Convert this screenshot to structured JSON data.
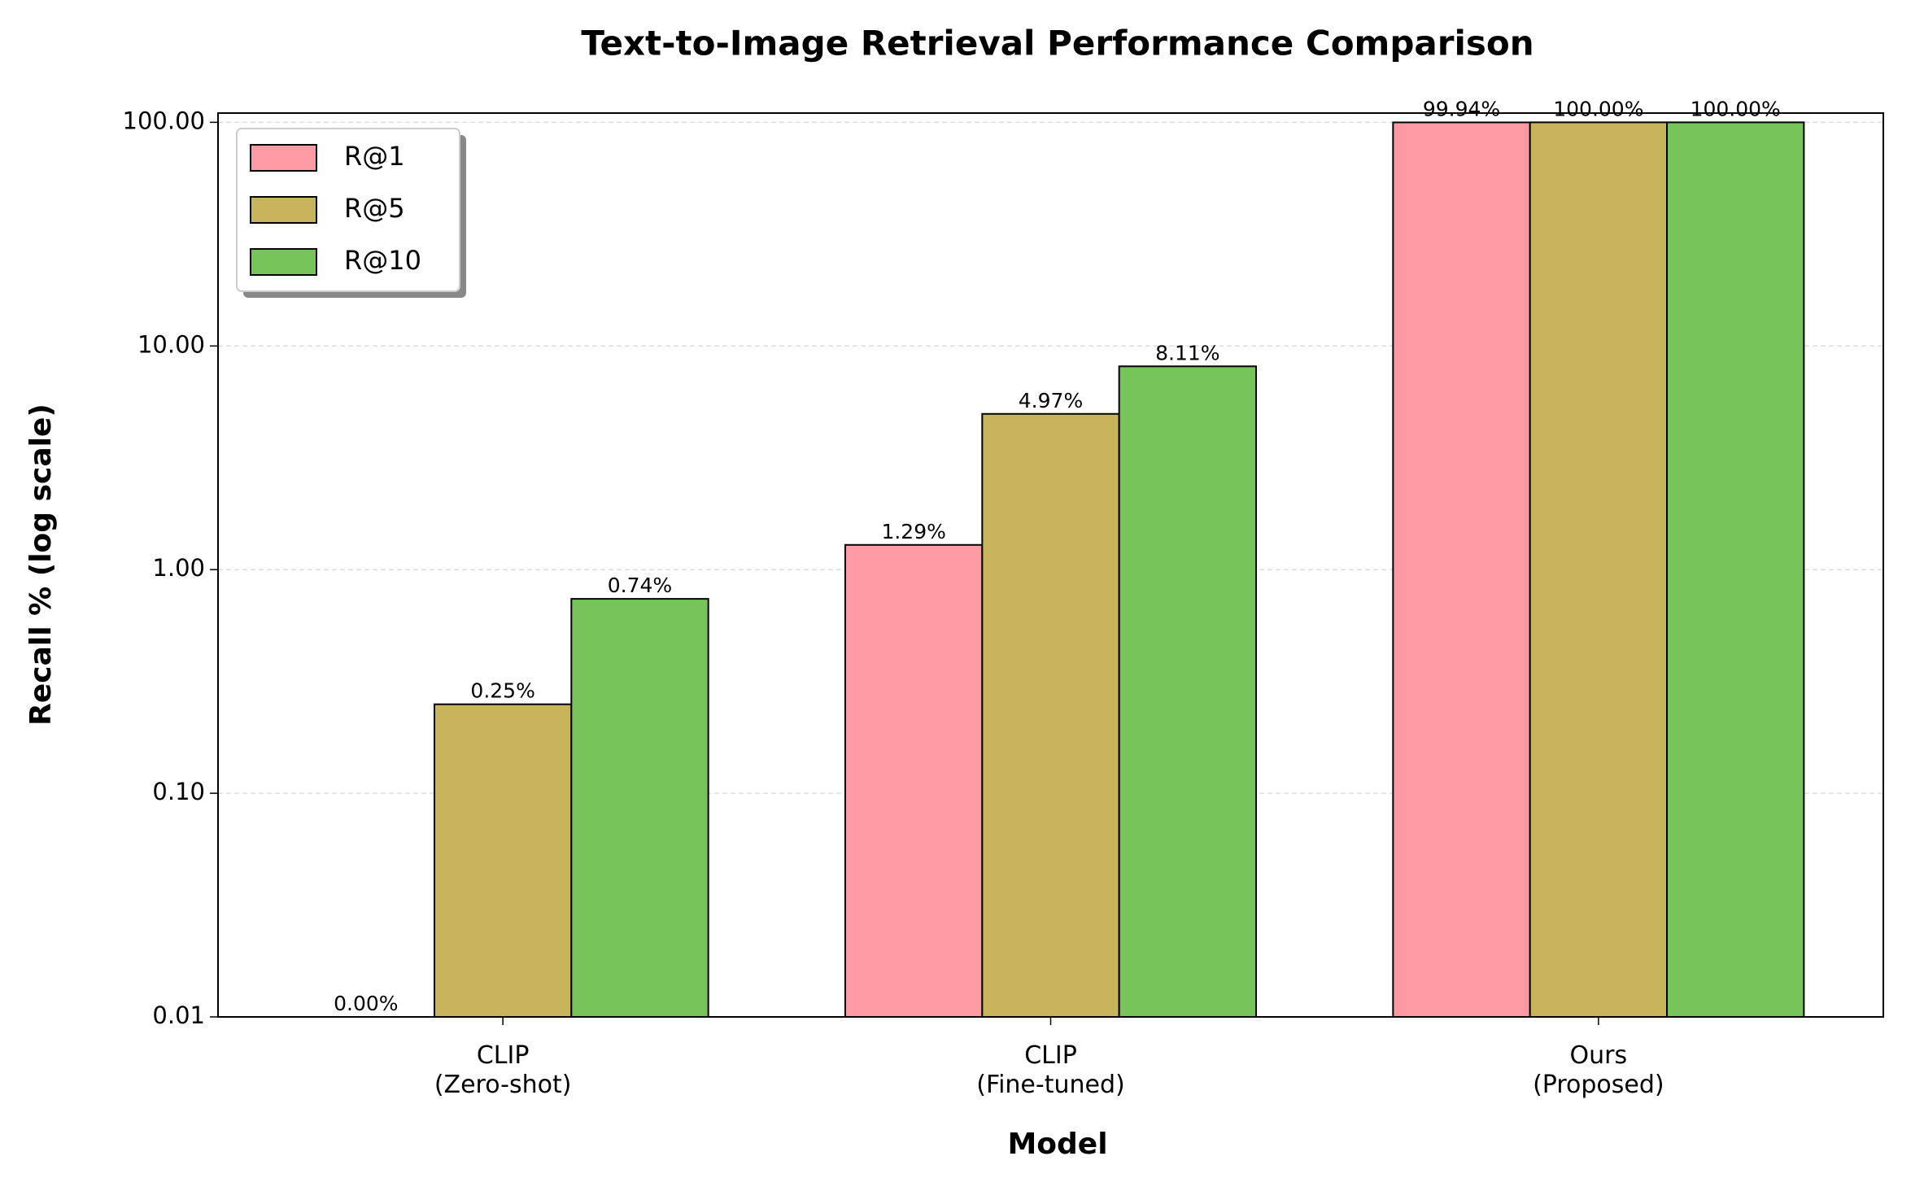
{
  "chart_data": {
    "type": "bar",
    "title": "Text-to-Image Retrieval Performance Comparison",
    "x_label": "Model",
    "y_label": "Recall % (log scale)",
    "categories": [
      "CLIP\n(Zero-shot)",
      "CLIP\n(Fine-tuned)",
      "Ours\n(Proposed)"
    ],
    "series": [
      {
        "name": "R@1",
        "color": "#fe9aa3",
        "values": [
          0,
          1.29,
          99.94
        ],
        "value_labels": [
          "0.00%",
          "1.29%",
          "99.94%"
        ]
      },
      {
        "name": "R@5",
        "color": "#c8b45a",
        "values": [
          0.25,
          4.97,
          100
        ],
        "value_labels": [
          "0.25%",
          "4.97%",
          "100.00%"
        ]
      },
      {
        "name": "R@10",
        "color": "#77c45a",
        "values": [
          0.74,
          8.11,
          100
        ],
        "value_labels": [
          "0.74%",
          "8.11%",
          "100.00%"
        ]
      }
    ],
    "log_scale": true,
    "ylim": [
      0.01,
      110
    ],
    "yticks": [
      0.01,
      {
        "value": 0.1,
        "label": "0.10"
      },
      {
        "value": 1,
        "label": "1.00"
      },
      {
        "value": 10,
        "label": "10.00"
      },
      {
        "value": 100,
        "label": "100.00"
      }
    ],
    "grid": true,
    "legend": "upper-left"
  }
}
